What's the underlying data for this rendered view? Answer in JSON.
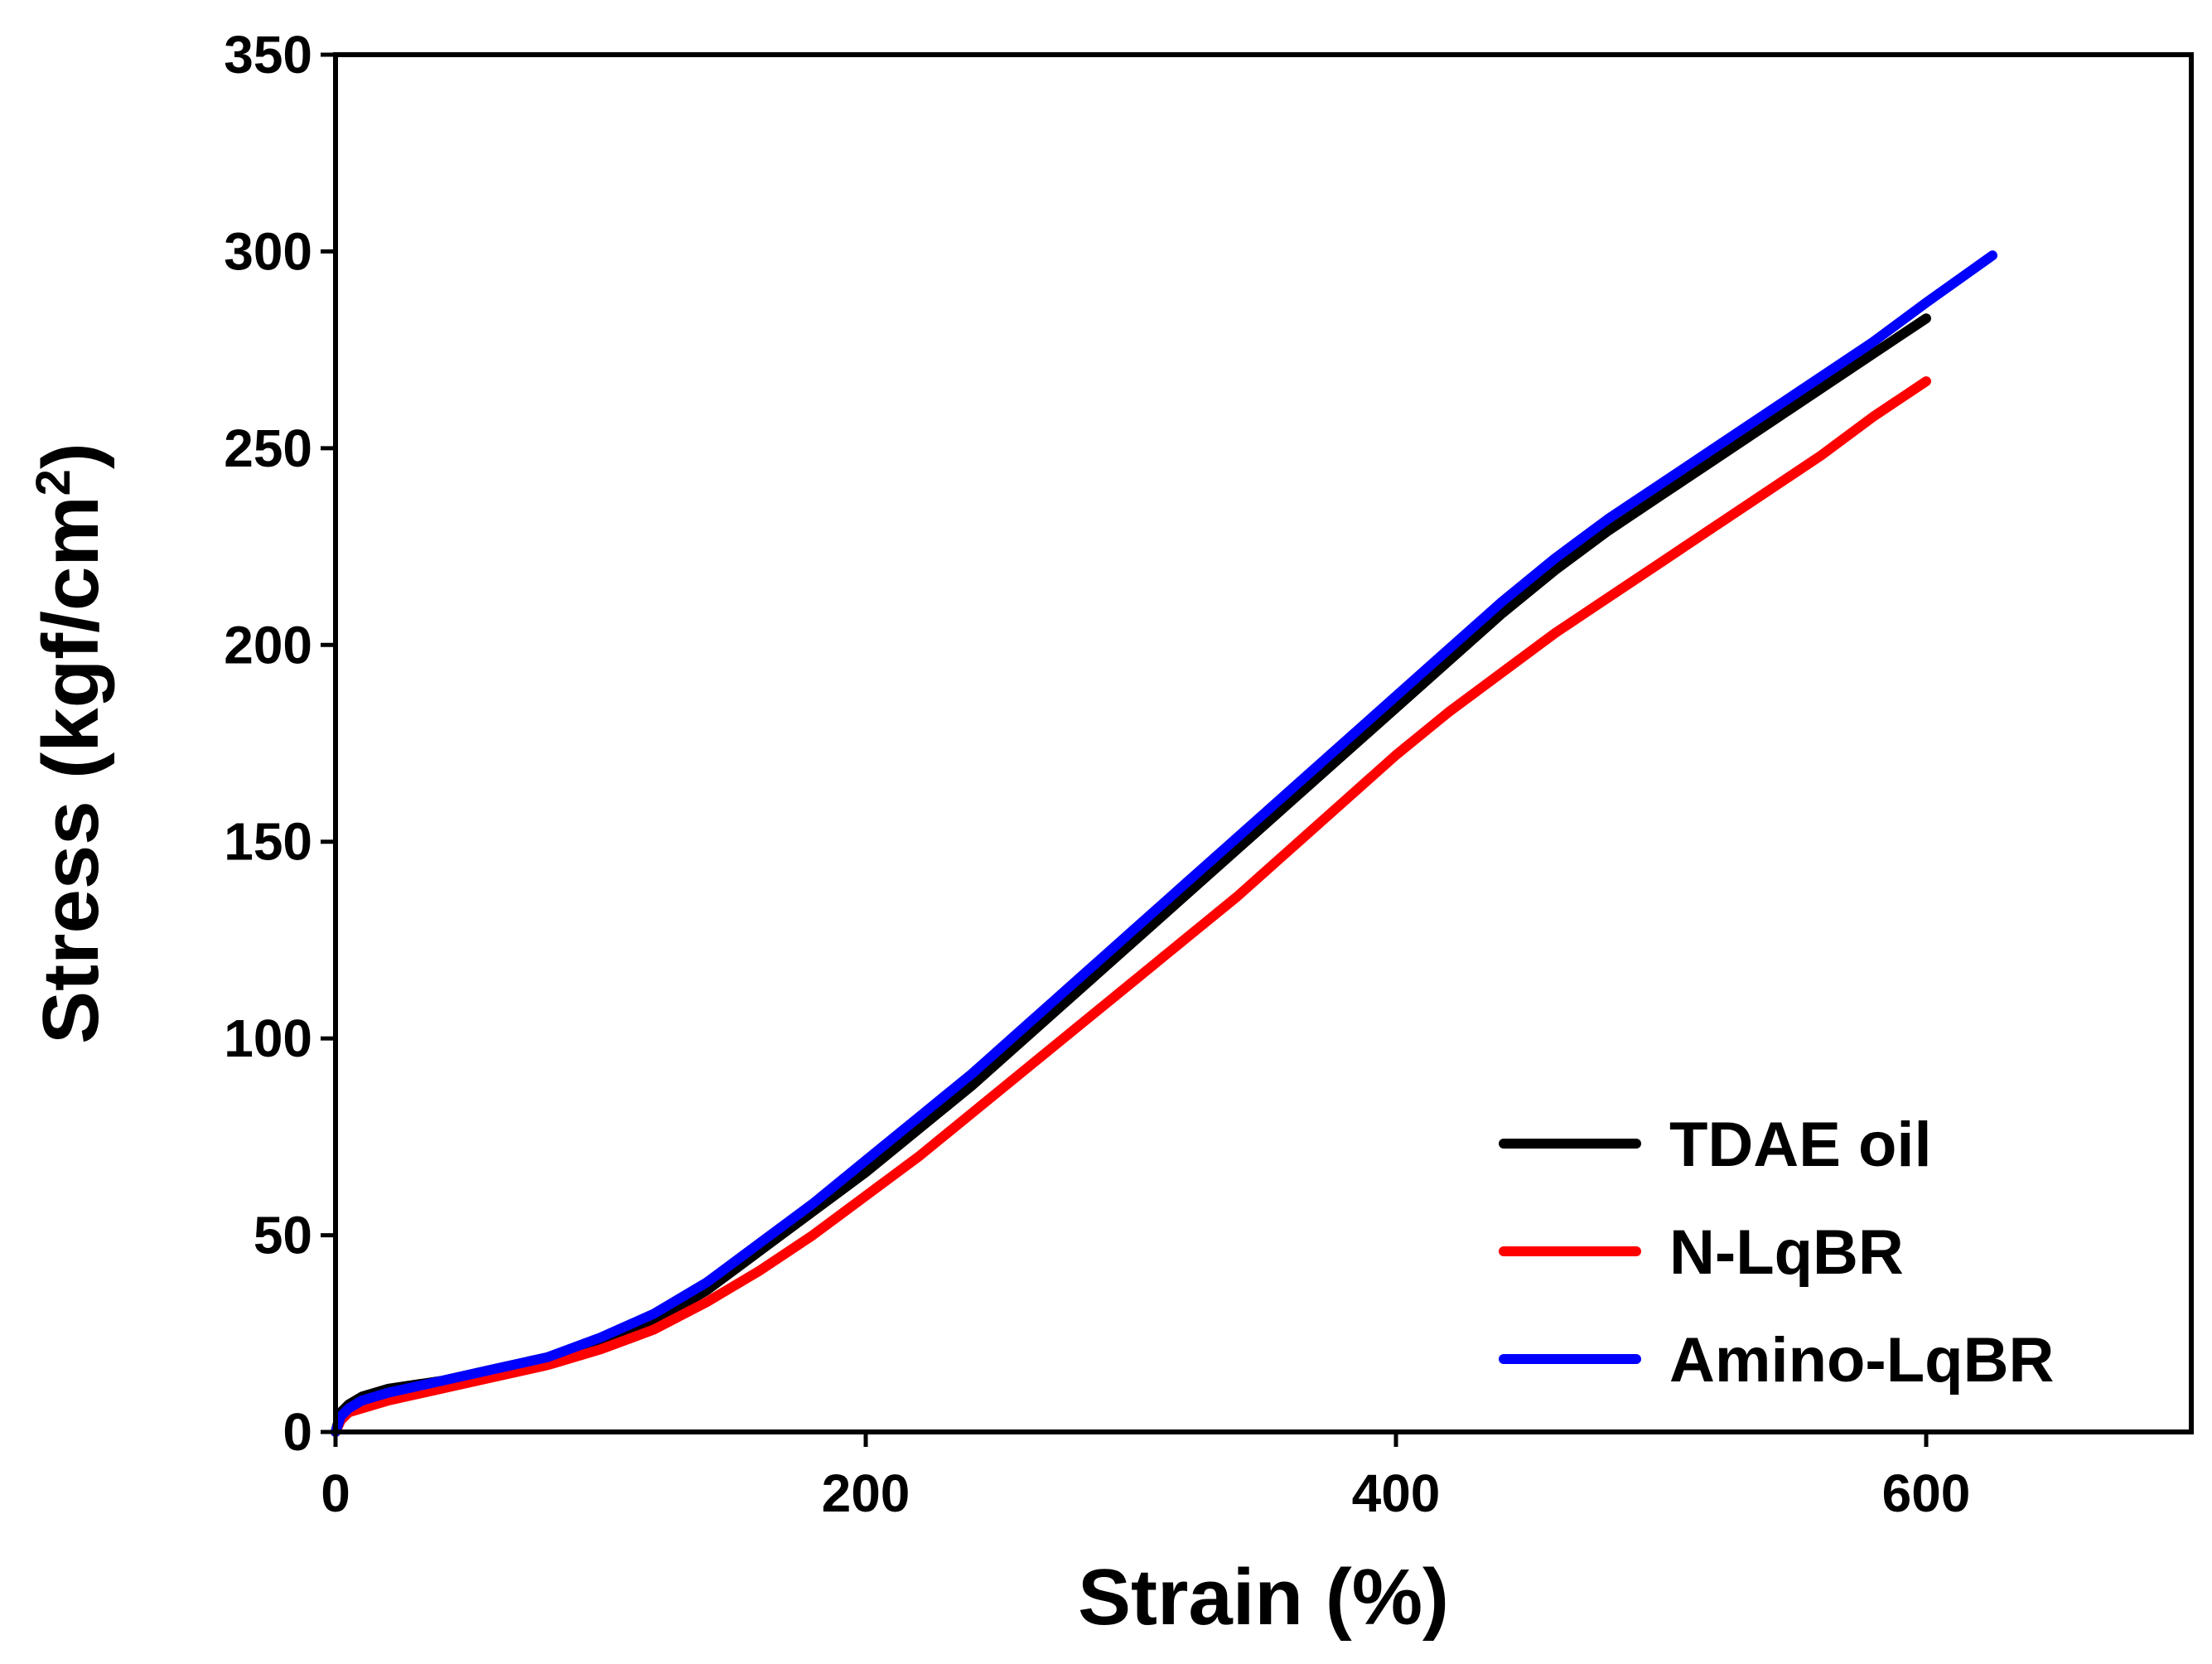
{
  "chart_data": {
    "type": "line",
    "title": "",
    "xlabel": "Strain (%)",
    "ylabel_main": "Stress (kgf/cm",
    "ylabel_sup": "2",
    "ylabel_close": ")",
    "xlim": [
      0,
      700
    ],
    "ylim": [
      0,
      350
    ],
    "xticks": [
      0,
      200,
      400,
      600
    ],
    "xtick_labels": [
      "0",
      "200",
      "400",
      "600"
    ],
    "yticks": [
      0,
      50,
      100,
      150,
      200,
      250,
      300,
      350
    ],
    "ytick_labels": [
      "0",
      "50",
      "100",
      "150",
      "200",
      "250",
      "300",
      "350"
    ],
    "grid": false,
    "legend_position": "bottom-right",
    "series": [
      {
        "name": "TDAE oil",
        "color": "#000000",
        "x": [
          0,
          2,
          5,
          10,
          20,
          40,
          60,
          80,
          100,
          120,
          140,
          160,
          180,
          200,
          220,
          240,
          260,
          280,
          300,
          320,
          340,
          360,
          380,
          400,
          420,
          440,
          460,
          480,
          500,
          520,
          540,
          560,
          580,
          600
        ],
        "y": [
          0,
          5,
          7,
          9,
          11,
          13,
          16,
          19,
          23,
          28,
          36,
          46,
          56,
          66,
          77,
          88,
          100,
          112,
          124,
          136,
          148,
          160,
          172,
          184,
          196,
          208,
          219,
          229,
          238,
          247,
          256,
          265,
          274,
          283
        ]
      },
      {
        "name": "N-LqBR",
        "color": "#ff0000",
        "x": [
          0,
          2,
          5,
          10,
          20,
          40,
          60,
          80,
          100,
          120,
          140,
          160,
          180,
          200,
          220,
          240,
          260,
          280,
          300,
          320,
          340,
          360,
          380,
          400,
          420,
          440,
          460,
          480,
          500,
          520,
          540,
          560,
          580,
          600
        ],
        "y": [
          0,
          3,
          5,
          6,
          8,
          11,
          14,
          17,
          21,
          26,
          33,
          41,
          50,
          60,
          70,
          81,
          92,
          103,
          114,
          125,
          136,
          148,
          160,
          172,
          183,
          193,
          203,
          212,
          221,
          230,
          239,
          248,
          258,
          267
        ]
      },
      {
        "name": "Amino-LqBR",
        "color": "#0000ff",
        "x": [
          0,
          2,
          5,
          10,
          20,
          40,
          60,
          80,
          100,
          120,
          140,
          160,
          180,
          200,
          220,
          240,
          260,
          280,
          300,
          320,
          340,
          360,
          380,
          400,
          420,
          440,
          460,
          480,
          500,
          520,
          540,
          560,
          580,
          600,
          625
        ],
        "y": [
          0,
          4,
          6,
          8,
          10,
          13,
          16,
          19,
          24,
          30,
          38,
          48,
          58,
          69,
          80,
          91,
          103,
          115,
          127,
          139,
          151,
          163,
          175,
          187,
          199,
          211,
          222,
          232,
          241,
          250,
          259,
          268,
          277,
          287,
          299
        ]
      }
    ]
  }
}
